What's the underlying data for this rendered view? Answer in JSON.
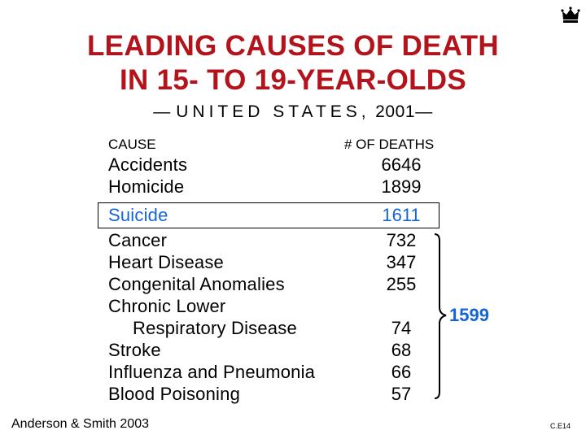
{
  "title": {
    "line1": "LEADING CAUSES OF DEATH",
    "line2": "IN 15- TO 19-YEAR-OLDS"
  },
  "subtitle": {
    "dash_left": "—",
    "spaced": "UNITED STATES,",
    "year": "2001",
    "dash_right": "—"
  },
  "table": {
    "header_cause": "CAUSE",
    "header_deaths": "# OF DEATHS",
    "rows": [
      {
        "cause": "Accidents",
        "deaths": "6646"
      },
      {
        "cause": "Homicide",
        "deaths": "1899"
      },
      {
        "cause": "Suicide",
        "deaths": "1611"
      },
      {
        "cause": "Cancer",
        "deaths": "732"
      },
      {
        "cause": "Heart Disease",
        "deaths": "347"
      },
      {
        "cause": "Congenital Anomalies",
        "deaths": "255"
      },
      {
        "cause": "Chronic Lower",
        "cause_line2": "Respiratory Disease",
        "deaths": "74"
      },
      {
        "cause": "Stroke",
        "deaths": "68"
      },
      {
        "cause": "Influenza and Pneumonia",
        "deaths": "66"
      },
      {
        "cause": "Blood Poisoning",
        "deaths": "57"
      }
    ],
    "bracket_total": "1599"
  },
  "source": "Anderson & Smith 2003",
  "slide_code": "C.E14",
  "logo_icon": "crown-icon",
  "colors": {
    "title": "#b3131b",
    "highlight": "#1565d8",
    "text": "#000000",
    "background": "#ffffff"
  }
}
